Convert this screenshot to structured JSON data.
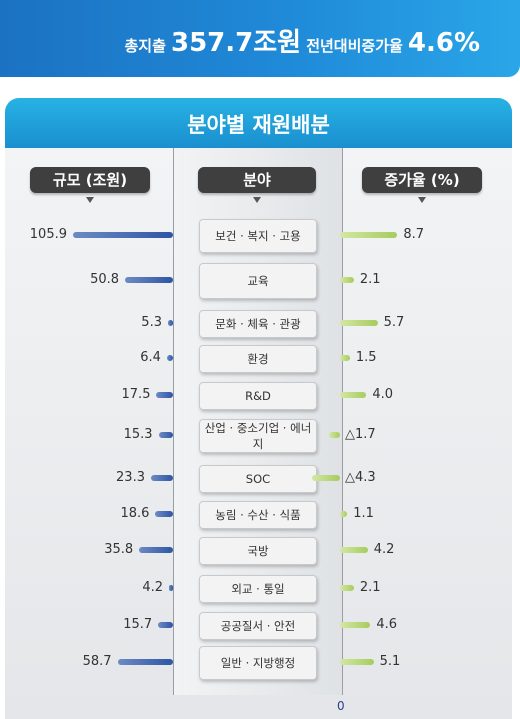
{
  "banner": {
    "total_label": "총지출",
    "total_value": "357.7조원",
    "growth_label": "전년대비증가율",
    "growth_value": "4.6%"
  },
  "panel": {
    "title": "분야별 재원배분"
  },
  "headers": {
    "scale": "규모 (조원)",
    "field": "분야",
    "growth": "증가율 (%)"
  },
  "axis": {
    "zero_label": "0"
  },
  "colors": {
    "scale_bar": "#2e55a5",
    "growth_bar": "#a6cc5d"
  },
  "chart_data": {
    "type": "bar",
    "title": "분야별 재원배분",
    "categories": [
      "보건 · 복지 · 고용",
      "교육",
      "문화 · 체육 · 관광",
      "환경",
      "R&D",
      "산업 · 중소기업 · 에너지",
      "SOC",
      "농림 · 수산 · 식품",
      "국방",
      "외교 · 통일",
      "공공질서 · 안전",
      "일반 · 지방행정"
    ],
    "series": [
      {
        "name": "규모 (조원)",
        "values": [
          105.9,
          50.8,
          5.3,
          6.4,
          17.5,
          15.3,
          23.3,
          18.6,
          35.8,
          4.2,
          15.7,
          58.7
        ],
        "labels": [
          "105.9",
          "50.8",
          "5.3",
          "6.4",
          "17.5",
          "15.3",
          "23.3",
          "18.6",
          "35.8",
          "4.2",
          "15.7",
          "58.7"
        ]
      },
      {
        "name": "증가율 (%)",
        "values": [
          8.7,
          2.1,
          5.7,
          1.5,
          4.0,
          -1.7,
          -4.3,
          1.1,
          4.2,
          2.1,
          4.6,
          5.1
        ],
        "labels": [
          "8.7",
          "2.1",
          "5.7",
          "1.5",
          "4.0",
          "△1.7",
          "△4.3",
          "1.1",
          "4.2",
          "2.1",
          "4.6",
          "5.1"
        ]
      }
    ]
  }
}
